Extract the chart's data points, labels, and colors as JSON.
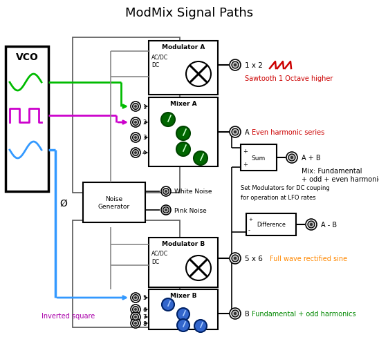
{
  "title": "ModMix Signal Paths",
  "title_fontsize": 13,
  "bg_color": "#ffffff",
  "vco_label": "VCO",
  "sine_color": "#00bb00",
  "square_color": "#cc00cc",
  "tri_color": "#3399ff",
  "noise_label": "Noise\nGenerator",
  "modA_label": "Modulator A",
  "modB_label": "Modulator B",
  "mixA_label": "Mixer A",
  "mixB_label": "Mixer B",
  "sum_label": "Sum",
  "diff_label": "Difference",
  "acdc_label": "AC/DC",
  "dc_label": "DC",
  "jack1x2_label": "1 x 2",
  "sawtooth_text": "Sawtooth 1 Octave higher",
  "sawtooth_color": "#cc0000",
  "jackA_label": "A",
  "even_harmonic_text": "Even harmonic series",
  "even_harmonic_color": "#cc0000",
  "jackAB_label": "A + B",
  "mix_text1": "Mix: Fundamental",
  "mix_text2": "+ odd + even harmonics",
  "mix_color": "#000000",
  "white_noise_text": "White Noise",
  "pink_noise_text": "Pink Noise",
  "dc_coupling_text1": "Set Modulators for DC couping",
  "dc_coupling_text2": "for operation at LFO rates",
  "dc_coupling_color": "#000000",
  "jackAB_diff_label": "A - B",
  "jack5x6_label": "5 x 6",
  "full_wave_text": "Full wave rectified sine",
  "full_wave_color": "#ff8800",
  "jackB_label": "B",
  "fund_odd_text": "Fundamental + odd harmonics",
  "fund_odd_color": "#008800",
  "inv_square_text": "Inverted square",
  "inv_square_color": "#aa00aa",
  "phi_label": "Ø",
  "knob_green_face": "#006600",
  "knob_green_edge": "#004400",
  "knob_blue_face": "#3366cc",
  "knob_blue_edge": "#002266"
}
